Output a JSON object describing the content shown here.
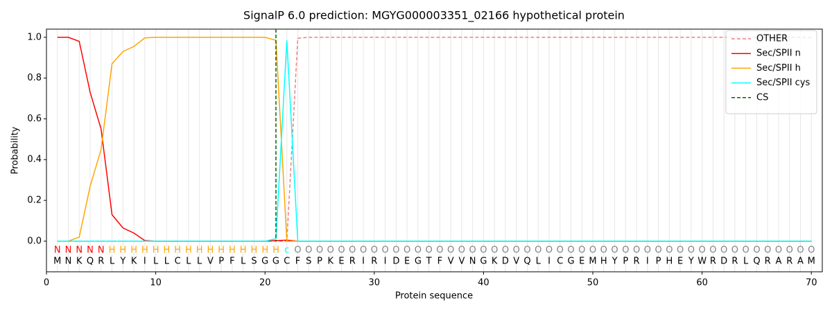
{
  "chart_data": {
    "type": "line",
    "title": "SignalP 6.0 prediction: MGYG000003351_02166 hypothetical protein",
    "xlabel": "Protein sequence",
    "ylabel": "Probability",
    "xlim": [
      0,
      71
    ],
    "ylim": [
      -0.15,
      1.04
    ],
    "xticks": [
      0,
      10,
      20,
      30,
      40,
      50,
      60,
      70
    ],
    "yticks": [
      {
        "value": 0,
        "label": "0.0"
      },
      {
        "value": 0.2,
        "label": "0.2"
      },
      {
        "value": 0.4,
        "label": "0.4"
      },
      {
        "value": 0.6,
        "label": "0.6"
      },
      {
        "value": 0.8,
        "label": "0.8"
      },
      {
        "value": 1,
        "label": "1.0"
      }
    ],
    "grid": true,
    "legend": "upper right",
    "x": [
      1,
      2,
      3,
      4,
      5,
      6,
      7,
      8,
      9,
      10,
      11,
      12,
      13,
      14,
      15,
      16,
      17,
      18,
      19,
      20,
      21,
      22,
      23,
      24,
      25,
      26,
      27,
      28,
      29,
      30,
      31,
      32,
      33,
      34,
      35,
      36,
      37,
      38,
      39,
      40,
      41,
      42,
      43,
      44,
      45,
      46,
      47,
      48,
      49,
      50,
      51,
      52,
      53,
      54,
      55,
      56,
      57,
      58,
      59,
      60,
      61,
      62,
      63,
      64,
      65,
      66,
      67,
      68,
      69,
      70
    ],
    "sequence": [
      "M",
      "N",
      "K",
      "Q",
      "R",
      "L",
      "Y",
      "K",
      "I",
      "L",
      "L",
      "C",
      "L",
      "L",
      "V",
      "P",
      "F",
      "L",
      "S",
      "G",
      "G",
      "C",
      "F",
      "S",
      "P",
      "K",
      "E",
      "R",
      "I",
      "R",
      "I",
      "D",
      "E",
      "G",
      "T",
      "F",
      "V",
      "V",
      "N",
      "G",
      "K",
      "D",
      "V",
      "Q",
      "L",
      "I",
      "C",
      "G",
      "E",
      "M",
      "H",
      "Y",
      "P",
      "R",
      "I",
      "P",
      "H",
      "E",
      "Y",
      "W",
      "R",
      "D",
      "R",
      "L",
      "Q",
      "R",
      "A",
      "R",
      "A",
      "M"
    ],
    "labels": [
      "N",
      "N",
      "N",
      "N",
      "N",
      "H",
      "H",
      "H",
      "H",
      "H",
      "H",
      "H",
      "H",
      "H",
      "H",
      "H",
      "H",
      "H",
      "H",
      "H",
      "H",
      "c",
      "O",
      "O",
      "O",
      "O",
      "O",
      "O",
      "O",
      "O",
      "O",
      "O",
      "O",
      "O",
      "O",
      "O",
      "O",
      "O",
      "O",
      "O",
      "O",
      "O",
      "O",
      "O",
      "O",
      "O",
      "O",
      "O",
      "O",
      "O",
      "O",
      "O",
      "O",
      "O",
      "O",
      "O",
      "O",
      "O",
      "O",
      "O",
      "O",
      "O",
      "O",
      "O",
      "O",
      "O",
      "O",
      "O",
      "O",
      "O"
    ],
    "label_colors": {
      "N": "#ff0000",
      "H": "#ffa500",
      "c": "#00ffff",
      "O": "#808080"
    },
    "series": [
      {
        "name": "OTHER",
        "color": "#f08080",
        "dash": true,
        "values": [
          0,
          0,
          0,
          0,
          0,
          0,
          0,
          0,
          0,
          0,
          0,
          0,
          0,
          0,
          0,
          0,
          0,
          0,
          0,
          0,
          0,
          0,
          0.995,
          1,
          1,
          1,
          1,
          1,
          1,
          1,
          1,
          1,
          1,
          1,
          1,
          1,
          1,
          1,
          1,
          1,
          1,
          1,
          1,
          1,
          1,
          1,
          1,
          1,
          1,
          1,
          1,
          1,
          1,
          1,
          1,
          1,
          1,
          1,
          1,
          1,
          1,
          1,
          1,
          1,
          1,
          1,
          1,
          1,
          1,
          1
        ]
      },
      {
        "name": "Sec/SPII n",
        "color": "#ff0000",
        "values": [
          1,
          1,
          0.98,
          0.73,
          0.55,
          0.13,
          0.065,
          0.04,
          0.003,
          0,
          0,
          0,
          0,
          0,
          0,
          0,
          0,
          0,
          0,
          0,
          0.003,
          0.005,
          0,
          0,
          0,
          0,
          0,
          0,
          0,
          0,
          0,
          0,
          0,
          0,
          0,
          0,
          0,
          0,
          0,
          0,
          0,
          0,
          0,
          0,
          0,
          0,
          0,
          0,
          0,
          0,
          0,
          0,
          0,
          0,
          0,
          0,
          0,
          0,
          0,
          0,
          0,
          0,
          0,
          0,
          0,
          0,
          0,
          0,
          0,
          0
        ]
      },
      {
        "name": "Sec/SPII h",
        "color": "#ffa500",
        "values": [
          0,
          0,
          0.02,
          0.27,
          0.45,
          0.87,
          0.93,
          0.955,
          0.997,
          1,
          1,
          1,
          1,
          1,
          1,
          1,
          1,
          1,
          1,
          1,
          0.985,
          0,
          0,
          0,
          0,
          0,
          0,
          0,
          0,
          0,
          0,
          0,
          0,
          0,
          0,
          0,
          0,
          0,
          0,
          0,
          0,
          0,
          0,
          0,
          0,
          0,
          0,
          0,
          0,
          0,
          0,
          0,
          0,
          0,
          0,
          0,
          0,
          0,
          0,
          0,
          0,
          0,
          0,
          0,
          0,
          0,
          0,
          0,
          0,
          0
        ]
      },
      {
        "name": "Sec/SPII cys",
        "color": "#00ffff",
        "values": [
          0,
          0,
          0,
          0,
          0,
          0,
          0,
          0,
          0,
          0,
          0,
          0,
          0,
          0,
          0,
          0,
          0,
          0,
          0,
          0,
          0.012,
          0.985,
          0,
          0,
          0,
          0,
          0,
          0,
          0,
          0,
          0,
          0,
          0,
          0,
          0,
          0,
          0,
          0,
          0,
          0,
          0,
          0,
          0,
          0,
          0,
          0,
          0,
          0,
          0,
          0,
          0,
          0,
          0,
          0,
          0,
          0,
          0,
          0,
          0,
          0,
          0,
          0,
          0,
          0,
          0,
          0,
          0,
          0,
          0,
          0
        ]
      }
    ],
    "cs": {
      "name": "CS",
      "color": "#006400",
      "x": 21
    }
  }
}
